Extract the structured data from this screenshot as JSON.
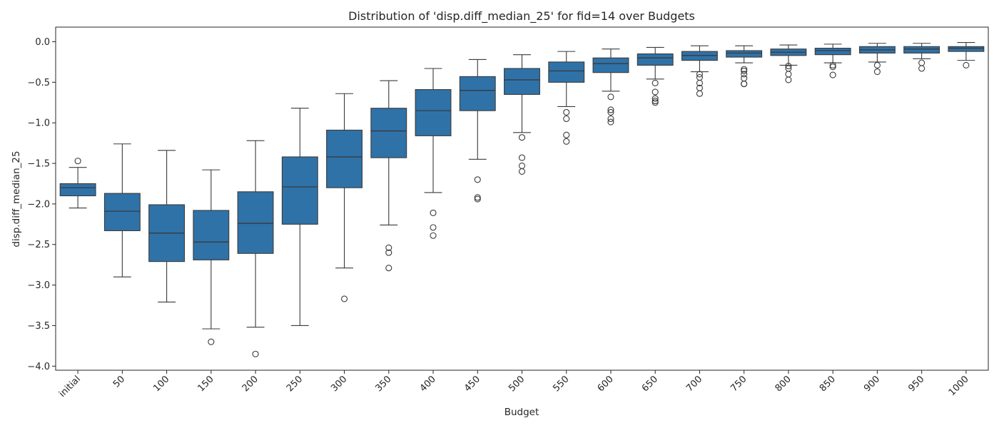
{
  "chart_data": {
    "type": "box",
    "title": "Distribution of 'disp.diff_median_25' for fid=14 over Budgets",
    "xlabel": "Budget",
    "ylabel": "disp.diff_median_25",
    "ylim": [
      -4.05,
      0.18
    ],
    "yticks": [
      0.0,
      -0.5,
      -1.0,
      -1.5,
      -2.0,
      -2.5,
      -3.0,
      -3.5,
      -4.0
    ],
    "ytick_labels": [
      "0.0",
      "−0.5",
      "−1.0",
      "−1.5",
      "−2.0",
      "−2.5",
      "−3.0",
      "−3.5",
      "−4.0"
    ],
    "grid": false,
    "box_color": "#2f72a8",
    "line_color": "#3a3a3a",
    "categories": [
      "initial",
      "50",
      "100",
      "150",
      "200",
      "250",
      "300",
      "350",
      "400",
      "450",
      "500",
      "550",
      "600",
      "650",
      "700",
      "750",
      "800",
      "850",
      "900",
      "950",
      "1000"
    ],
    "boxes": [
      {
        "category": "initial",
        "whisker_low": -2.05,
        "q1": -1.9,
        "median": -1.8,
        "q3": -1.75,
        "whisker_high": -1.55,
        "outliers": [
          -1.47
        ]
      },
      {
        "category": "50",
        "whisker_low": -2.9,
        "q1": -2.33,
        "median": -2.09,
        "q3": -1.87,
        "whisker_high": -1.26,
        "outliers": []
      },
      {
        "category": "100",
        "whisker_low": -3.21,
        "q1": -2.71,
        "median": -2.36,
        "q3": -2.01,
        "whisker_high": -1.34,
        "outliers": []
      },
      {
        "category": "150",
        "whisker_low": -3.54,
        "q1": -2.69,
        "median": -2.47,
        "q3": -2.08,
        "whisker_high": -1.58,
        "outliers": [
          -3.7
        ]
      },
      {
        "category": "200",
        "whisker_low": -3.52,
        "q1": -2.61,
        "median": -2.24,
        "q3": -1.85,
        "whisker_high": -1.22,
        "outliers": [
          -3.85
        ]
      },
      {
        "category": "250",
        "whisker_low": -3.5,
        "q1": -2.25,
        "median": -1.79,
        "q3": -1.42,
        "whisker_high": -0.82,
        "outliers": []
      },
      {
        "category": "300",
        "whisker_low": -2.79,
        "q1": -1.8,
        "median": -1.42,
        "q3": -1.09,
        "whisker_high": -0.64,
        "outliers": [
          -3.17
        ]
      },
      {
        "category": "350",
        "whisker_low": -2.26,
        "q1": -1.43,
        "median": -1.1,
        "q3": -0.82,
        "whisker_high": -0.48,
        "outliers": [
          -2.54,
          -2.6,
          -2.79
        ]
      },
      {
        "category": "400",
        "whisker_low": -1.86,
        "q1": -1.16,
        "median": -0.85,
        "q3": -0.59,
        "whisker_high": -0.33,
        "outliers": [
          -2.11,
          -2.29,
          -2.39
        ]
      },
      {
        "category": "450",
        "whisker_low": -1.45,
        "q1": -0.85,
        "median": -0.6,
        "q3": -0.43,
        "whisker_high": -0.22,
        "outliers": [
          -1.7,
          -1.92,
          -1.94
        ]
      },
      {
        "category": "500",
        "whisker_low": -1.12,
        "q1": -0.65,
        "median": -0.47,
        "q3": -0.33,
        "whisker_high": -0.16,
        "outliers": [
          -1.18,
          -1.43,
          -1.53,
          -1.6
        ]
      },
      {
        "category": "550",
        "whisker_low": -0.8,
        "q1": -0.5,
        "median": -0.36,
        "q3": -0.25,
        "whisker_high": -0.12,
        "outliers": [
          -0.87,
          -0.95,
          -1.15,
          -1.23
        ]
      },
      {
        "category": "600",
        "whisker_low": -0.61,
        "q1": -0.38,
        "median": -0.27,
        "q3": -0.2,
        "whisker_high": -0.09,
        "outliers": [
          -0.68,
          -0.84,
          -0.87,
          -0.95,
          -0.99
        ]
      },
      {
        "category": "650",
        "whisker_low": -0.46,
        "q1": -0.29,
        "median": -0.2,
        "q3": -0.15,
        "whisker_high": -0.07,
        "outliers": [
          -0.51,
          -0.62,
          -0.7,
          -0.73,
          -0.75
        ]
      },
      {
        "category": "700",
        "whisker_low": -0.37,
        "q1": -0.23,
        "median": -0.17,
        "q3": -0.12,
        "whisker_high": -0.05,
        "outliers": [
          -0.4,
          -0.44,
          -0.51,
          -0.57,
          -0.64
        ]
      },
      {
        "category": "750",
        "whisker_low": -0.26,
        "q1": -0.19,
        "median": -0.14,
        "q3": -0.11,
        "whisker_high": -0.05,
        "outliers": [
          -0.34,
          -0.36,
          -0.4,
          -0.45,
          -0.52,
          -0.52
        ]
      },
      {
        "category": "800",
        "whisker_low": -0.29,
        "q1": -0.17,
        "median": -0.13,
        "q3": -0.09,
        "whisker_high": -0.04,
        "outliers": [
          -0.3,
          -0.33,
          -0.4,
          -0.47
        ]
      },
      {
        "category": "850",
        "whisker_low": -0.26,
        "q1": -0.16,
        "median": -0.11,
        "q3": -0.08,
        "whisker_high": -0.03,
        "outliers": [
          -0.29,
          -0.31,
          -0.41
        ]
      },
      {
        "category": "900",
        "whisker_low": -0.25,
        "q1": -0.14,
        "median": -0.1,
        "q3": -0.06,
        "whisker_high": -0.02,
        "outliers": [
          -0.29,
          -0.37
        ]
      },
      {
        "category": "950",
        "whisker_low": -0.21,
        "q1": -0.14,
        "median": -0.09,
        "q3": -0.06,
        "whisker_high": -0.02,
        "outliers": [
          -0.26,
          -0.33
        ]
      },
      {
        "category": "1000",
        "whisker_low": -0.23,
        "q1": -0.12,
        "median": -0.08,
        "q3": -0.06,
        "whisker_high": -0.01,
        "outliers": [
          -0.29
        ]
      }
    ]
  }
}
